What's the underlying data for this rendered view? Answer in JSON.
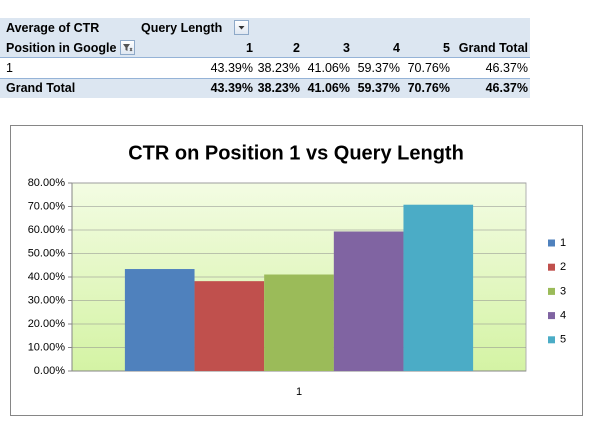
{
  "pivot_table": {
    "corner": "Average of CTR",
    "column_field": "Query Length",
    "row_field": "Position in Google",
    "column_headers": [
      "1",
      "2",
      "3",
      "4",
      "5",
      "Grand Total"
    ],
    "rows": [
      [
        "1",
        "43.39%",
        "38.23%",
        "41.06%",
        "59.37%",
        "70.76%",
        "46.37%"
      ],
      [
        "Grand Total",
        "43.39%",
        "38.23%",
        "41.06%",
        "59.37%",
        "70.76%",
        "46.37%"
      ]
    ]
  },
  "chart_data": {
    "type": "bar",
    "title": "CTR on Position 1 vs Query Length",
    "categories": [
      "1"
    ],
    "series": [
      {
        "name": "1",
        "color": "#4f81bd",
        "values": [
          43.39
        ]
      },
      {
        "name": "2",
        "color": "#c0504d",
        "values": [
          38.23
        ]
      },
      {
        "name": "3",
        "color": "#9bbb59",
        "values": [
          41.06
        ]
      },
      {
        "name": "4",
        "color": "#8064a2",
        "values": [
          59.37
        ]
      },
      {
        "name": "5",
        "color": "#4bacc6",
        "values": [
          70.76
        ]
      }
    ],
    "ylim": [
      0,
      80
    ],
    "yticks": [
      {
        "value": 0,
        "label": "0.00%"
      },
      {
        "value": 10,
        "label": "10.00%"
      },
      {
        "value": 20,
        "label": "20.00%"
      },
      {
        "value": 30,
        "label": "30.00%"
      },
      {
        "value": 40,
        "label": "40.00%"
      },
      {
        "value": 50,
        "label": "50.00%"
      },
      {
        "value": 60,
        "label": "60.00%"
      },
      {
        "value": 70,
        "label": "70.00%"
      },
      {
        "value": 80,
        "label": "80.00%"
      }
    ],
    "grid": true,
    "legend": "right"
  }
}
